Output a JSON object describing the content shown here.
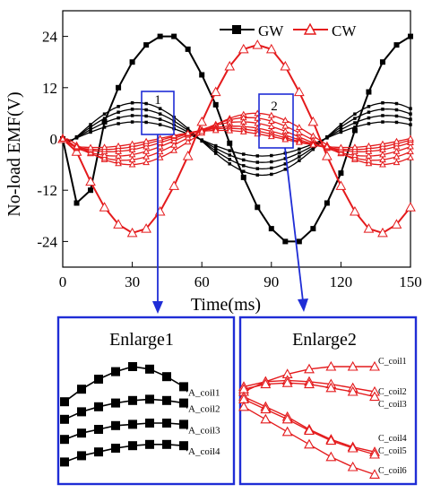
{
  "colors": {
    "gw": "#000000",
    "cw": "#e41a1c",
    "box": "#1f2dd6"
  },
  "chart_data": [
    {
      "type": "line",
      "title": "",
      "xlabel": "Time(ms)",
      "ylabel": "No-load EMF(V)",
      "xlim": [
        0,
        150
      ],
      "ylim": [
        -30,
        30
      ],
      "xticks": [
        "0",
        "30",
        "60",
        "90",
        "120",
        "150"
      ],
      "yticks": [
        "-24",
        "-12",
        "0",
        "12",
        "24"
      ],
      "legend_position": "top-right",
      "legend": [
        "GW",
        "CW"
      ],
      "series": [
        {
          "name": "GW",
          "group": "GW",
          "amplitude": 25,
          "phase_deg": 0,
          "x": [
            0,
            6,
            12,
            18,
            24,
            30,
            36,
            42,
            48,
            54,
            60,
            66,
            72,
            78,
            84,
            90,
            96,
            102,
            108,
            114,
            120,
            126,
            132,
            138,
            144,
            150
          ],
          "y": [
            0,
            -15,
            -12,
            4,
            12,
            18,
            22,
            24,
            24,
            21,
            15,
            8,
            -1,
            -9,
            -16,
            -21,
            -24,
            -24,
            -21,
            -15,
            -8,
            2,
            11,
            18,
            22,
            24
          ]
        },
        {
          "group": "GW",
          "amplitude": 8.5,
          "phase_deg": 0
        },
        {
          "group": "GW",
          "amplitude": 7,
          "phase_deg": 0
        },
        {
          "group": "GW",
          "amplitude": 5.5,
          "phase_deg": 0
        },
        {
          "group": "GW",
          "amplitude": 4,
          "phase_deg": 0
        },
        {
          "name": "CW",
          "group": "CW",
          "amplitude": 22,
          "phase_deg": 180,
          "x": [
            0,
            6,
            12,
            18,
            24,
            30,
            36,
            42,
            48,
            54,
            60,
            66,
            72,
            78,
            84,
            90,
            96,
            102,
            108,
            114,
            120,
            126,
            132,
            138,
            144,
            150
          ],
          "y": [
            0,
            -3,
            -10,
            -16,
            -20,
            -22,
            -21,
            -17,
            -11,
            -4,
            4,
            11,
            17,
            21,
            22,
            21,
            17,
            11,
            4,
            -4,
            -11,
            -17,
            -21,
            -22,
            -20,
            -16
          ]
        },
        {
          "group": "CW",
          "amplitude": 6,
          "phase_deg": 190
        },
        {
          "group": "CW",
          "amplitude": 5,
          "phase_deg": 200
        },
        {
          "group": "CW",
          "amplitude": 4,
          "phase_deg": 210
        },
        {
          "group": "CW",
          "amplitude": 3,
          "phase_deg": 220
        },
        {
          "group": "CW",
          "amplitude": 2.5,
          "phase_deg": 230
        },
        {
          "group": "CW",
          "amplitude": 2,
          "phase_deg": 240
        }
      ],
      "annotations": [
        "1",
        "2"
      ]
    },
    {
      "type": "line",
      "title": "Enlarge1",
      "series": [
        {
          "name": "A_coil1",
          "y": [
            0.62,
            0.72,
            0.8,
            0.86,
            0.9,
            0.88,
            0.82,
            0.74
          ]
        },
        {
          "name": "A_coil2",
          "y": [
            0.48,
            0.54,
            0.58,
            0.61,
            0.63,
            0.64,
            0.63,
            0.61
          ]
        },
        {
          "name": "A_coil3",
          "y": [
            0.32,
            0.37,
            0.4,
            0.43,
            0.44,
            0.45,
            0.45,
            0.44
          ]
        },
        {
          "name": "A_coil4",
          "y": [
            0.14,
            0.19,
            0.22,
            0.25,
            0.27,
            0.28,
            0.28,
            0.27
          ]
        }
      ]
    },
    {
      "type": "line",
      "title": "Enlarge2",
      "series": [
        {
          "name": "C_coil1",
          "y": [
            0.7,
            0.78,
            0.84,
            0.88,
            0.9,
            0.9,
            0.9
          ]
        },
        {
          "name": "C_coil2",
          "y": [
            0.74,
            0.78,
            0.79,
            0.78,
            0.76,
            0.73,
            0.7
          ]
        },
        {
          "name": "C_coil3",
          "y": [
            0.72,
            0.76,
            0.77,
            0.76,
            0.73,
            0.7,
            0.66
          ]
        },
        {
          "name": "C_coil4",
          "y": [
            0.66,
            0.58,
            0.5,
            0.4,
            0.32,
            0.26,
            0.22
          ]
        },
        {
          "name": "C_coil5",
          "y": [
            0.64,
            0.56,
            0.48,
            0.39,
            0.31,
            0.25,
            0.2
          ]
        },
        {
          "name": "C_coil6",
          "y": [
            0.58,
            0.48,
            0.38,
            0.28,
            0.18,
            0.1,
            0.04
          ]
        }
      ]
    }
  ]
}
